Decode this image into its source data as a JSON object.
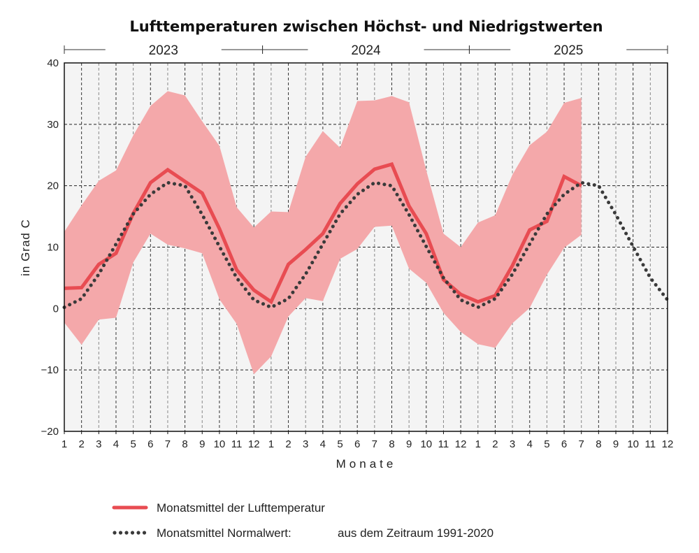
{
  "chart_data": {
    "type": "area",
    "title": "Lufttemperaturen zwischen Höchst- und Niedrigstwerten",
    "xlabel": "Monate",
    "ylabel": "in Grad C",
    "ylim": [
      -20,
      40
    ],
    "yticks": [
      40,
      30,
      20,
      10,
      0,
      -10,
      -20
    ],
    "ytick_labels": [
      "40",
      "30",
      "20",
      "10",
      "0",
      "−10",
      "−20"
    ],
    "years": [
      "2023",
      "2024",
      "2025"
    ],
    "x_tick_labels": [
      "1",
      "2",
      "3",
      "4",
      "5",
      "6",
      "7",
      "8",
      "9",
      "10",
      "11",
      "12",
      "1",
      "2",
      "3",
      "4",
      "5",
      "6",
      "7",
      "8",
      "9",
      "10",
      "11",
      "12",
      "1",
      "2",
      "3",
      "4",
      "5",
      "6",
      "7",
      "8",
      "9",
      "10",
      "11",
      "12"
    ],
    "grid": true,
    "legend_position": "bottom",
    "series": [
      {
        "name": "Höchstwerte",
        "role": "band-upper",
        "color": "#f4a8aa",
        "values": [
          12.5,
          16.8,
          20.8,
          22.5,
          28.2,
          33.0,
          35.4,
          34.7,
          30.5,
          26.5,
          16.5,
          13.2,
          15.8,
          15.7,
          24.7,
          28.9,
          26.2,
          33.8,
          33.9,
          34.6,
          33.6,
          22.5,
          12.2,
          10.0,
          14.0,
          15.2,
          21.8,
          26.6,
          28.8,
          33.5,
          34.3
        ]
      },
      {
        "name": "Niedrigstwerte",
        "role": "band-lower",
        "color": "#f4a8aa",
        "values": [
          -2.3,
          -5.9,
          -1.8,
          -1.5,
          7.5,
          12.2,
          10.4,
          9.8,
          9.0,
          1.5,
          -2.5,
          -10.7,
          -7.8,
          -1.3,
          1.7,
          1.2,
          8.1,
          9.7,
          13.3,
          13.5,
          6.5,
          4.2,
          -0.7,
          -3.8,
          -5.8,
          -6.4,
          -2.4,
          0.1,
          5.5,
          9.9,
          12.0
        ]
      },
      {
        "name": "Monatsmittel der Lufttemperatur",
        "role": "line",
        "color": "#e84c52",
        "values": [
          3.3,
          3.4,
          7.2,
          9.0,
          15.5,
          20.5,
          22.6,
          20.7,
          18.8,
          13.0,
          6.3,
          3.0,
          1.1,
          7.2,
          9.6,
          12.2,
          17.1,
          20.3,
          22.7,
          23.5,
          16.7,
          12.2,
          4.7,
          2.3,
          1.1,
          2.1,
          7.0,
          12.8,
          14.2,
          21.5,
          20.0
        ]
      },
      {
        "name": "Monatsmittel Normalwert",
        "role": "dotted",
        "color": "#3a3a3a",
        "values": [
          0.2,
          1.6,
          5.6,
          10.5,
          15.4,
          18.6,
          20.5,
          20.0,
          15.3,
          10.1,
          5.0,
          1.4,
          0.2,
          1.6,
          5.6,
          10.5,
          15.4,
          18.6,
          20.5,
          20.0,
          15.3,
          10.1,
          5.0,
          1.4,
          0.2,
          1.6,
          5.6,
          10.5,
          15.4,
          18.6,
          20.5,
          20.0,
          15.3,
          10.1,
          5.0,
          1.4
        ]
      }
    ],
    "legend": [
      {
        "label": "Monatsmittel der Lufttemperatur",
        "style": "line"
      },
      {
        "label": "Monatsmittel Normalwert:",
        "note": "aus dem Zeitraum 1991-2020",
        "style": "dotted"
      }
    ],
    "colors": {
      "plot_background": "#f4f4f4",
      "band": "#f4a8aa",
      "mean": "#e84c52",
      "normal": "#3a3a3a"
    }
  }
}
